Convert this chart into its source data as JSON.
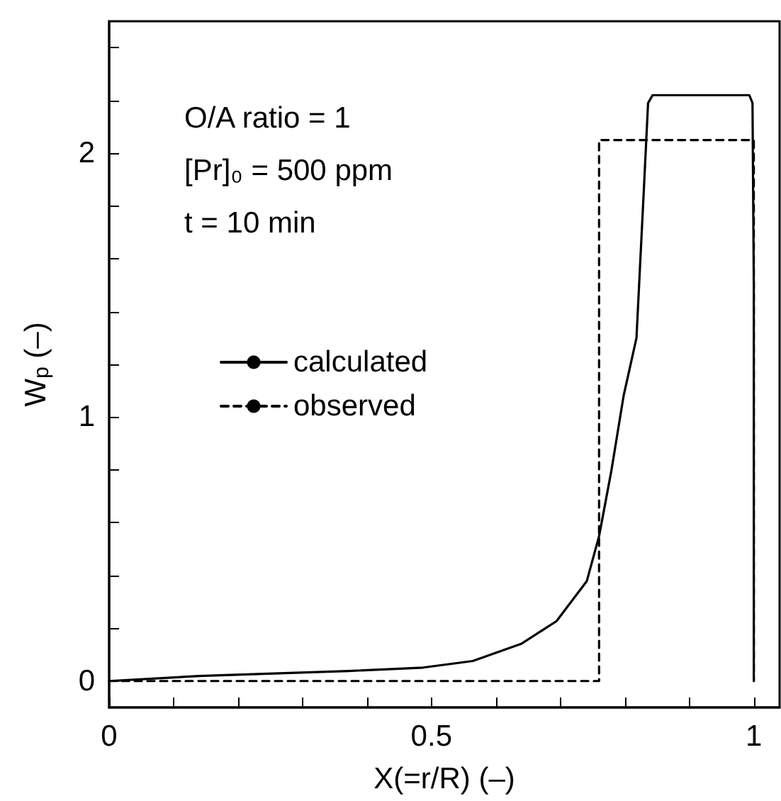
{
  "chart_data": {
    "type": "line",
    "xlabel": "X(=r/R) (–)",
    "ylabel": "W$_{p}$ (–)",
    "annotations": [
      "O/A ratio = 1",
      "[Pr]₀ = 500 ppm",
      "t = 10 min"
    ],
    "xlim": [
      0,
      1.04
    ],
    "ylim": [
      -0.1,
      2.5
    ],
    "xticks": [
      0,
      {
        "value": 0.1,
        "label": null
      },
      {
        "value": 0.2,
        "label": null
      },
      {
        "value": 0.3,
        "label": null
      },
      {
        "value": 0.4,
        "label": null
      },
      0.5,
      {
        "value": 0.6,
        "label": null
      },
      {
        "value": 0.7,
        "label": null
      },
      {
        "value": 0.8,
        "label": null
      },
      {
        "value": 0.9,
        "label": null
      },
      1
    ],
    "yticks": [
      0,
      {
        "value": 0.2,
        "label": null
      },
      {
        "value": 0.4,
        "label": null
      },
      {
        "value": 0.6,
        "label": null
      },
      {
        "value": 0.8,
        "label": null
      },
      1,
      {
        "value": 1.2,
        "label": null
      },
      {
        "value": 1.4,
        "label": null
      },
      {
        "value": 1.6,
        "label": null
      },
      {
        "value": 1.8,
        "label": null
      },
      2,
      {
        "value": 2.2,
        "label": null
      },
      {
        "value": 2.4,
        "label": null
      }
    ],
    "grid": false,
    "legend": "left",
    "marker": "none",
    "series": [
      {
        "name": "calculated",
        "color": "#000000",
        "line_style": "solid",
        "x": [
          0,
          0.14,
          0.371,
          0.487,
          0.564,
          0.64,
          0.694,
          0.741,
          0.76,
          0.779,
          0.798,
          0.818,
          0.829,
          0.836,
          0.843,
          0.993,
          0.998,
          1,
          1
        ],
        "values": [
          0,
          0.019,
          0.038,
          0.051,
          0.076,
          0.142,
          0.227,
          0.379,
          0.549,
          0.796,
          1.08,
          1.3,
          1.84,
          2.19,
          2.22,
          2.22,
          2.19,
          1.5,
          0
        ]
      },
      {
        "name": "observed",
        "color": "#000000",
        "line_style": "dashed",
        "x": [
          0,
          0.76,
          0.76,
          1,
          1
        ],
        "values": [
          0,
          0,
          2.05,
          2.05,
          0
        ]
      }
    ]
  }
}
